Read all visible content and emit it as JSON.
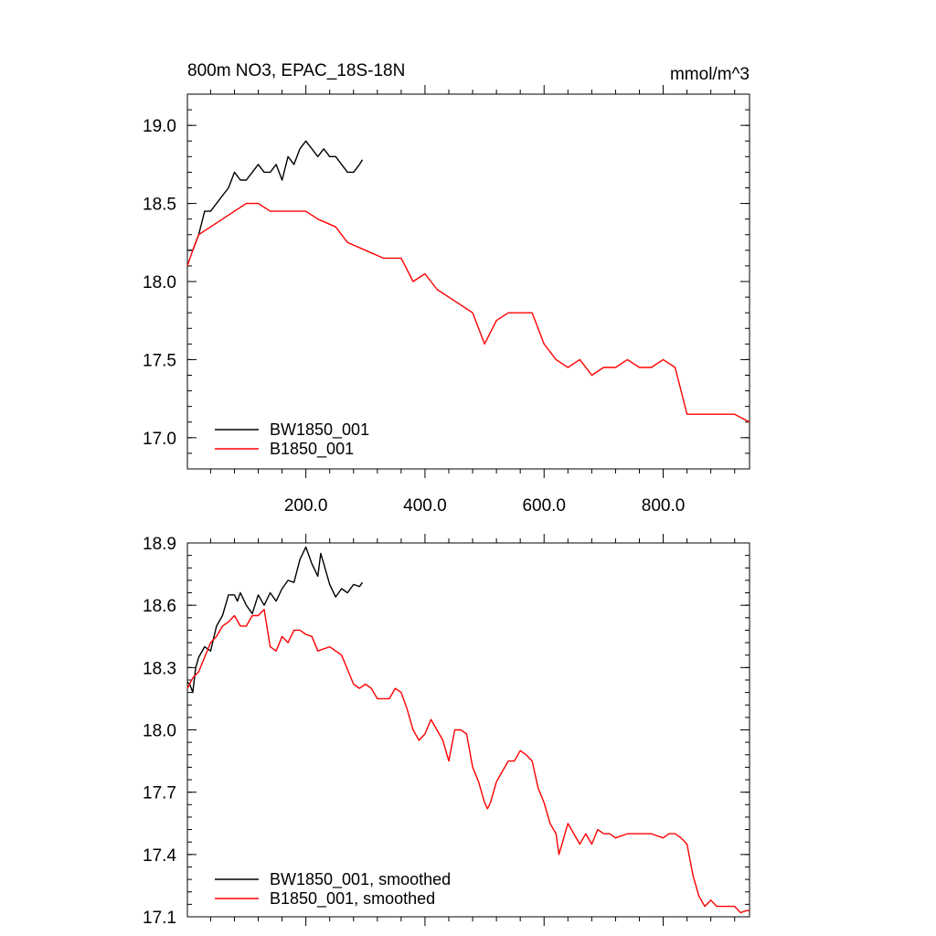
{
  "chart_data": [
    {
      "type": "line",
      "title": "800m NO3, EPAC_18S-18N",
      "units": "mmol/m^3",
      "xlim": [
        1,
        945
      ],
      "ylim": [
        16.8,
        19.2
      ],
      "yticks": [
        17.0,
        17.5,
        18.0,
        18.5,
        19.0
      ],
      "ytick_labels": [
        "17.0",
        "17.5",
        "18.0",
        "18.5",
        "19.0"
      ],
      "xticks": [
        200,
        400,
        600,
        800
      ],
      "xtick_labels": [
        "200.0",
        "400.0",
        "600.0",
        "800.0"
      ],
      "legend_position": "bottom-left",
      "series": [
        {
          "name": "BW1850_001",
          "color": "#000000",
          "x": [
            1,
            10,
            20,
            30,
            40,
            50,
            60,
            70,
            80,
            90,
            100,
            110,
            120,
            130,
            140,
            150,
            160,
            170,
            180,
            190,
            200,
            210,
            220,
            230,
            240,
            250,
            260,
            270,
            280,
            290,
            295
          ],
          "values": [
            18.2,
            18.2,
            18.3,
            18.45,
            18.45,
            18.5,
            18.55,
            18.6,
            18.7,
            18.65,
            18.65,
            18.7,
            18.75,
            18.7,
            18.7,
            18.75,
            18.65,
            18.8,
            18.75,
            18.85,
            18.9,
            18.85,
            18.8,
            18.85,
            18.8,
            18.8,
            18.75,
            18.7,
            18.7,
            18.75,
            18.78
          ]
        },
        {
          "name": "B1850_001",
          "color": "#ff0000",
          "x": [
            1,
            10,
            20,
            40,
            60,
            80,
            100,
            120,
            140,
            160,
            180,
            200,
            220,
            250,
            270,
            300,
            330,
            360,
            380,
            400,
            420,
            440,
            460,
            480,
            500,
            520,
            540,
            560,
            580,
            600,
            620,
            640,
            660,
            680,
            700,
            720,
            740,
            760,
            780,
            800,
            820,
            840,
            860,
            880,
            900,
            920,
            945
          ],
          "values": [
            18.1,
            18.2,
            18.3,
            18.35,
            18.4,
            18.45,
            18.5,
            18.5,
            18.45,
            18.45,
            18.45,
            18.45,
            18.4,
            18.35,
            18.25,
            18.2,
            18.15,
            18.15,
            18.0,
            18.05,
            17.95,
            17.9,
            17.85,
            17.8,
            17.6,
            17.75,
            17.8,
            17.8,
            17.8,
            17.6,
            17.5,
            17.45,
            17.5,
            17.4,
            17.45,
            17.45,
            17.5,
            17.45,
            17.45,
            17.5,
            17.45,
            17.15,
            17.15,
            17.15,
            17.15,
            17.15,
            17.1
          ]
        }
      ]
    },
    {
      "type": "line",
      "title": "",
      "xlim": [
        1,
        945
      ],
      "ylim": [
        17.1,
        18.9
      ],
      "yticks": [
        17.1,
        17.4,
        17.7,
        18.0,
        18.3,
        18.6,
        18.9
      ],
      "ytick_labels": [
        "17.1",
        "17.4",
        "17.7",
        "18.0",
        "18.3",
        "18.6",
        "18.9"
      ],
      "legend_position": "bottom-left",
      "series": [
        {
          "name": "BW1850_001, smoothed",
          "color": "#000000",
          "x": [
            1,
            5,
            10,
            15,
            20,
            30,
            40,
            50,
            60,
            70,
            80,
            85,
            90,
            100,
            110,
            120,
            130,
            140,
            150,
            160,
            170,
            180,
            190,
            200,
            210,
            220,
            225,
            230,
            240,
            250,
            260,
            270,
            280,
            290,
            295
          ],
          "values": [
            18.23,
            18.22,
            18.18,
            18.3,
            18.35,
            18.4,
            18.38,
            18.5,
            18.55,
            18.65,
            18.65,
            18.62,
            18.66,
            18.6,
            18.56,
            18.65,
            18.6,
            18.66,
            18.62,
            18.68,
            18.72,
            18.71,
            18.82,
            18.88,
            18.8,
            18.74,
            18.85,
            18.8,
            18.7,
            18.64,
            18.68,
            18.66,
            18.7,
            18.69,
            18.71
          ]
        },
        {
          "name": "B1850_001, smoothed",
          "color": "#ff0000",
          "x": [
            1,
            10,
            20,
            30,
            40,
            50,
            60,
            70,
            80,
            90,
            100,
            110,
            120,
            130,
            140,
            150,
            160,
            170,
            180,
            190,
            200,
            210,
            220,
            240,
            260,
            280,
            290,
            300,
            310,
            320,
            330,
            340,
            350,
            360,
            370,
            380,
            390,
            400,
            410,
            420,
            430,
            440,
            450,
            460,
            470,
            480,
            490,
            500,
            505,
            510,
            520,
            530,
            540,
            550,
            560,
            570,
            580,
            590,
            600,
            610,
            620,
            625,
            630,
            640,
            650,
            660,
            670,
            680,
            690,
            700,
            710,
            720,
            740,
            760,
            780,
            800,
            810,
            820,
            830,
            840,
            850,
            860,
            870,
            880,
            890,
            900,
            910,
            920,
            930,
            940,
            945
          ],
          "values": [
            18.2,
            18.25,
            18.28,
            18.35,
            18.42,
            18.45,
            18.5,
            18.52,
            18.55,
            18.5,
            18.5,
            18.55,
            18.55,
            18.58,
            18.4,
            18.38,
            18.45,
            18.42,
            18.48,
            18.48,
            18.46,
            18.45,
            18.38,
            18.4,
            18.36,
            18.22,
            18.2,
            18.22,
            18.2,
            18.15,
            18.15,
            18.15,
            18.2,
            18.18,
            18.1,
            18.0,
            17.95,
            17.98,
            18.05,
            18.0,
            17.95,
            17.85,
            18.0,
            18.0,
            17.98,
            17.82,
            17.75,
            17.65,
            17.62,
            17.65,
            17.75,
            17.8,
            17.85,
            17.85,
            17.9,
            17.88,
            17.85,
            17.72,
            17.65,
            17.55,
            17.5,
            17.4,
            17.45,
            17.55,
            17.5,
            17.45,
            17.5,
            17.45,
            17.52,
            17.5,
            17.5,
            17.48,
            17.5,
            17.5,
            17.5,
            17.48,
            17.5,
            17.5,
            17.48,
            17.45,
            17.3,
            17.2,
            17.15,
            17.18,
            17.15,
            17.15,
            17.15,
            17.15,
            17.12,
            17.13,
            17.13
          ]
        }
      ]
    }
  ]
}
